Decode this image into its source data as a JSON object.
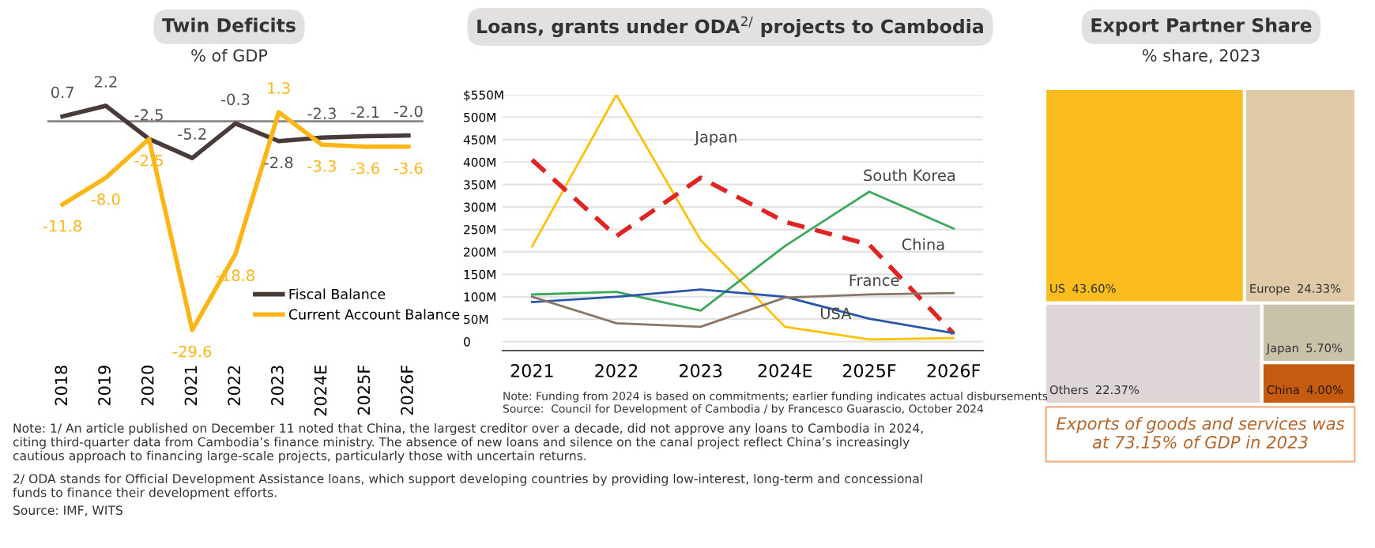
{
  "chart_data": [
    {
      "type": "line",
      "title": "Twin Deficits",
      "subtitle": "% of GDP",
      "categories": [
        "2018",
        "2019",
        "2020",
        "2021",
        "2022",
        "2023",
        "2024E",
        "2025F",
        "2026F"
      ],
      "series": [
        {
          "name": "Fiscal Balance",
          "color": "#4a3b3b",
          "values": [
            0.7,
            2.2,
            -2.5,
            -5.2,
            -0.3,
            -2.8,
            -2.3,
            -2.1,
            -2.0
          ],
          "value_labels": [
            "0.7",
            "2.2",
            "-2.5",
            "-5.2",
            "-0.3",
            "-2.8",
            "-2.3",
            "-2.1",
            "-2.0"
          ]
        },
        {
          "name": "Current Account Balance",
          "color": "#fbb515",
          "values": [
            -11.8,
            -8.0,
            -2.5,
            -29.6,
            -18.8,
            1.3,
            -3.3,
            -3.6,
            -3.6
          ],
          "value_labels": [
            "-11.8",
            "-8.0",
            "-2.5",
            "-29.6",
            "-18.8",
            "1.3",
            "-3.3",
            "-3.6",
            "-3.6"
          ]
        }
      ],
      "ref_lines": [
        {
          "axis": "y",
          "value": 0,
          "color": "#8c8585"
        }
      ],
      "legend": "bottom right",
      "grid": false,
      "tick_labels": "x",
      "annotations": [
        "Note: 1/ An article published on December 11 noted that China, the largest creditor over a decade, did not approve any loans to Cambodia in 2024, citing third-quarter data from Cambodia’s finance ministry. The absence of new loans and silence on the canal project reflect China’s increasingly cautious approach to financing large-scale projects, particularly those with uncertain returns.",
        "2/ ODA stands for Official Development Assistance loans, which support developing countries by providing low-interest, long-term and concessional funds to finance their development efforts.",
        "Source: IMF, WITS"
      ]
    },
    {
      "type": "line",
      "title": "Loans, grants under ODA$^{2/}$ projects to Cambodia",
      "categories": [
        "2021",
        "2022",
        "2023",
        "2024E",
        "2025F",
        "2026F"
      ],
      "series": [
        {
          "color": "#ffc000",
          "values": [
            212,
            550,
            226,
            33,
            5,
            8
          ]
        },
        {
          "color": "#e02424",
          "line_style": "dashed",
          "values": [
            405,
            235,
            365,
            267,
            216,
            18
          ]
        },
        {
          "color": "#3aa858",
          "values": [
            105,
            111,
            69,
            213,
            334,
            252
          ]
        },
        {
          "color": "#2a56a6",
          "values": [
            88,
            100,
            116,
            100,
            51,
            19
          ]
        },
        {
          "color": "#8b7565",
          "values": [
            100,
            41,
            33,
            98,
            105,
            108
          ]
        }
      ],
      "ylim": [
        -20,
        550
      ],
      "yticks": [
        0,
        {
          "value": 50,
          "label": "50M"
        },
        {
          "value": 100,
          "label": "100M"
        },
        {
          "value": 150,
          "label": "150M"
        },
        {
          "value": 200,
          "label": "200M"
        },
        {
          "value": 250,
          "label": "250M"
        },
        {
          "value": 300,
          "label": "300M"
        },
        {
          "value": 350,
          "label": "350M"
        },
        {
          "value": 400,
          "label": "400M"
        },
        {
          "value": 450,
          "label": "450M"
        },
        {
          "value": 500,
          "label": "500M"
        },
        {
          "value": 550,
          "label": "$550M"
        }
      ],
      "grid": "y",
      "legend": false,
      "annotations": [
        "Japan",
        "South Korea",
        "China",
        "France",
        "USA",
        "Note: Funding from 2024 is based on commitments; earlier funding indicates actual disbursements",
        "Source:  Council for Development of Cambodia / by Francesco Guarascio, October 2024"
      ]
    },
    {
      "type": "other",
      "title": "Export Partner Share",
      "subtitle": "% share, 2023",
      "categories": [
        "US",
        "Europe",
        "Others",
        "Japan",
        "China"
      ],
      "values": [
        43.6,
        24.33,
        22.37,
        5.7,
        4.0
      ],
      "value_labels": [
        "43.60%",
        "24.33%",
        "22.37%",
        "5.70%",
        "4.00%"
      ],
      "colors": [
        "#fbbc1e",
        "#e0c9a6",
        "#ded6d6",
        "#c8c3a8",
        "#c55a11"
      ],
      "annotations": [
        "Exports of goods and services was at 73.15% of GDP in 2023"
      ]
    }
  ]
}
